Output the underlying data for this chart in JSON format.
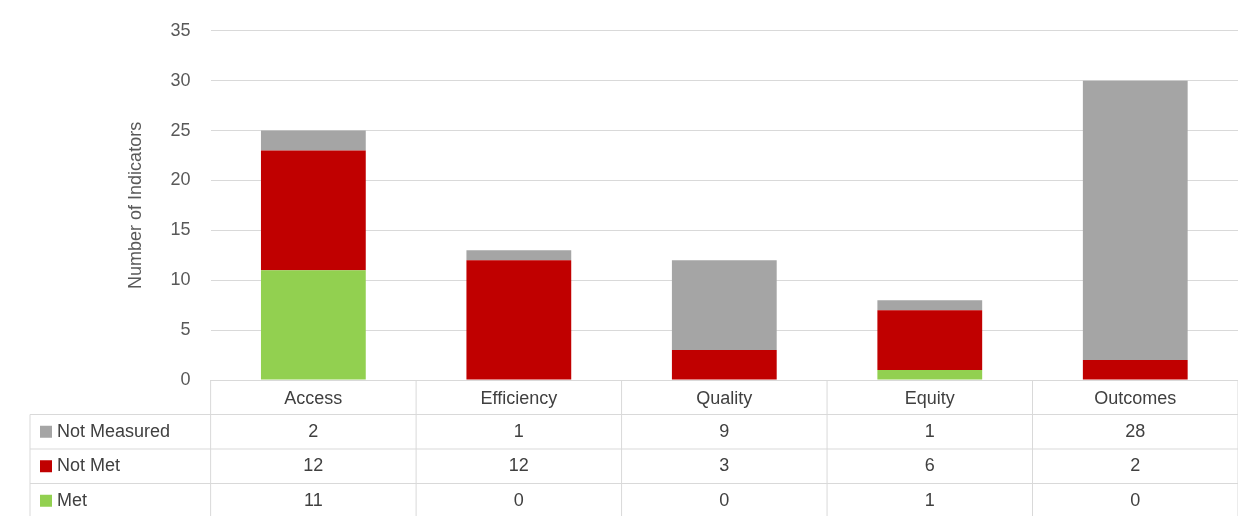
{
  "chart_data": {
    "type": "bar",
    "ylabel": "Number of Indicators",
    "categories": [
      "Access",
      "Efficiency",
      "Quality",
      "Equity",
      "Outcomes"
    ],
    "series": [
      {
        "name": "Met",
        "color": "#92d050",
        "values": [
          11,
          0,
          0,
          1,
          0
        ]
      },
      {
        "name": "Not Met",
        "color": "#c00000",
        "values": [
          12,
          12,
          3,
          6,
          2
        ]
      },
      {
        "name": "Not Measured",
        "color": "#a5a5a5",
        "values": [
          2,
          1,
          9,
          1,
          28
        ]
      }
    ],
    "stacked": true,
    "ylim": [
      0,
      35
    ],
    "yticks": [
      0,
      5,
      10,
      15,
      20,
      25,
      30,
      35
    ],
    "grid": "y",
    "legend": "bottom",
    "data_labels": true
  }
}
